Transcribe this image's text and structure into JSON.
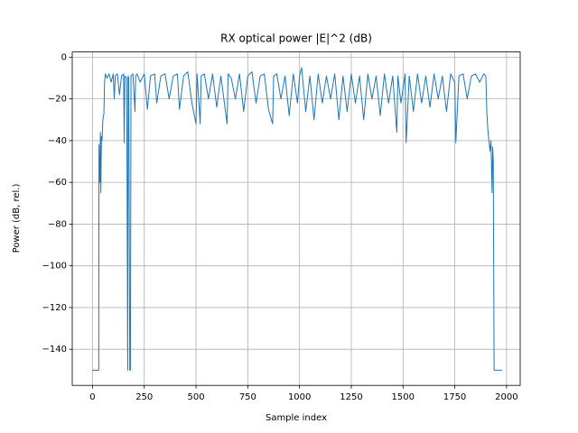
{
  "chart_data": {
    "type": "line",
    "title": "RX optical power |E|^2 (dB)",
    "xlabel": "Sample index",
    "ylabel": "Power (dB, rel.)",
    "color": "#1f77b4",
    "grid": true,
    "xlim": [
      -98,
      2066
    ],
    "ylim": [
      -157.3,
      2.5
    ],
    "xticks": [
      0,
      250,
      500,
      750,
      1000,
      1250,
      1500,
      1750,
      2000
    ],
    "yticks": [
      0,
      {
        "value": -20,
        "label": "−20"
      },
      {
        "value": -40,
        "label": "−40"
      },
      {
        "value": -60,
        "label": "−60"
      },
      {
        "value": -80,
        "label": "−80"
      },
      {
        "value": -100,
        "label": "−100"
      },
      {
        "value": -120,
        "label": "−120"
      },
      {
        "value": -140,
        "label": "−140"
      }
    ],
    "x": [
      0,
      30,
      31,
      35,
      38,
      40,
      43,
      46,
      50,
      55,
      58,
      62,
      70,
      80,
      90,
      100,
      105,
      110,
      120,
      130,
      140,
      150,
      153,
      156,
      165,
      170,
      172,
      175,
      180,
      183,
      186,
      195,
      205,
      208,
      215,
      230,
      250,
      265,
      280,
      300,
      310,
      330,
      350,
      370,
      390,
      410,
      420,
      440,
      460,
      480,
      500,
      505,
      520,
      525,
      540,
      560,
      580,
      600,
      620,
      650,
      655,
      670,
      690,
      710,
      730,
      750,
      770,
      790,
      810,
      830,
      850,
      870,
      875,
      890,
      910,
      930,
      950,
      970,
      990,
      1000,
      1010,
      1030,
      1050,
      1070,
      1090,
      1110,
      1130,
      1150,
      1170,
      1190,
      1210,
      1230,
      1250,
      1270,
      1290,
      1310,
      1330,
      1350,
      1370,
      1390,
      1410,
      1430,
      1450,
      1470,
      1475,
      1490,
      1510,
      1515,
      1530,
      1550,
      1570,
      1590,
      1610,
      1630,
      1650,
      1670,
      1690,
      1710,
      1730,
      1750,
      1755,
      1770,
      1790,
      1810,
      1830,
      1850,
      1870,
      1890,
      1900,
      1905,
      1910,
      1915,
      1920,
      1925,
      1930,
      1933,
      1936,
      1940,
      1978
    ],
    "values": [
      -150,
      -150,
      -42,
      -60,
      -36,
      -65,
      -38,
      -40,
      -30,
      -27,
      -12,
      -8,
      -10,
      -8,
      -12,
      -8,
      -20,
      -9,
      -8,
      -18,
      -9,
      -8,
      -41,
      -9,
      -10,
      -150,
      -9,
      -10,
      -150,
      -150,
      -9,
      -8,
      -26,
      -9,
      -8,
      -12,
      -8,
      -25,
      -9,
      -8,
      -22,
      -9,
      -8,
      -20,
      -9,
      -8,
      -25,
      -9,
      -7,
      -22,
      -32,
      -8,
      -32,
      -9,
      -8,
      -20,
      -8,
      -24,
      -9,
      -32,
      -8,
      -10,
      -20,
      -8,
      -26,
      -9,
      -7,
      -22,
      -9,
      -8,
      -25,
      -32,
      -9,
      -8,
      -20,
      -9,
      -28,
      -8,
      -22,
      -9,
      -5,
      -26,
      -9,
      -30,
      -8,
      -22,
      -9,
      -20,
      -8,
      -30,
      -9,
      -26,
      -8,
      -22,
      -9,
      -30,
      -8,
      -20,
      -9,
      -28,
      -8,
      -22,
      -9,
      -36,
      -9,
      -22,
      -8,
      -41,
      -9,
      -26,
      -8,
      -22,
      -9,
      -24,
      -8,
      -20,
      -9,
      -26,
      -8,
      -12,
      -41,
      -9,
      -8,
      -20,
      -9,
      -8,
      -12,
      -8,
      -9,
      -27,
      -35,
      -40,
      -45,
      -40,
      -65,
      -43,
      -50,
      -150,
      -150
    ]
  }
}
